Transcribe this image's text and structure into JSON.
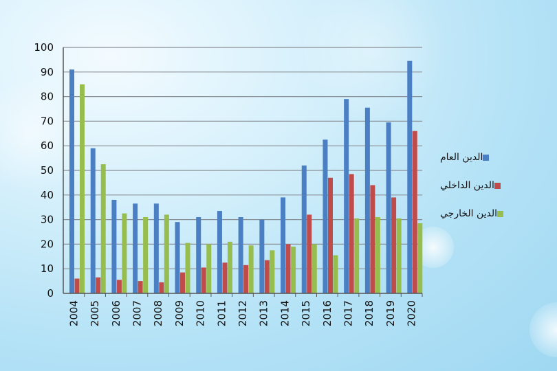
{
  "chart_data": {
    "type": "bar",
    "categories": [
      "2004",
      "2005",
      "2006",
      "2007",
      "2008",
      "2009",
      "2010",
      "2011",
      "2012",
      "2013",
      "2014",
      "2015",
      "2016",
      "2017",
      "2018",
      "2019",
      "2020"
    ],
    "series": [
      {
        "name": "الدين العام",
        "color": "#4a7fc4",
        "values": [
          91,
          59,
          38,
          36.5,
          36.5,
          29,
          31,
          33.5,
          31,
          30,
          39,
          52,
          62.5,
          79,
          75.5,
          69.5,
          94.5
        ]
      },
      {
        "name": "الدين الداخلي",
        "color": "#bf4b4a",
        "values": [
          6,
          6.5,
          5.5,
          5,
          4.5,
          8.5,
          10.5,
          12.5,
          11.5,
          13.5,
          20,
          32,
          47,
          48.5,
          44,
          39,
          66
        ]
      },
      {
        "name": "الدين الخارجي",
        "color": "#98bd4f",
        "values": [
          85,
          52.5,
          32.5,
          31,
          32,
          20.5,
          20,
          21,
          19.5,
          17.5,
          19,
          20,
          15.5,
          30.5,
          31,
          30.5,
          28.5
        ]
      }
    ],
    "y_ticks": [
      "0",
      "10",
      "20",
      "30",
      "40",
      "50",
      "60",
      "70",
      "80",
      "90",
      "100"
    ],
    "ylim": [
      0,
      100
    ],
    "grid": true,
    "legend_position": "right"
  }
}
